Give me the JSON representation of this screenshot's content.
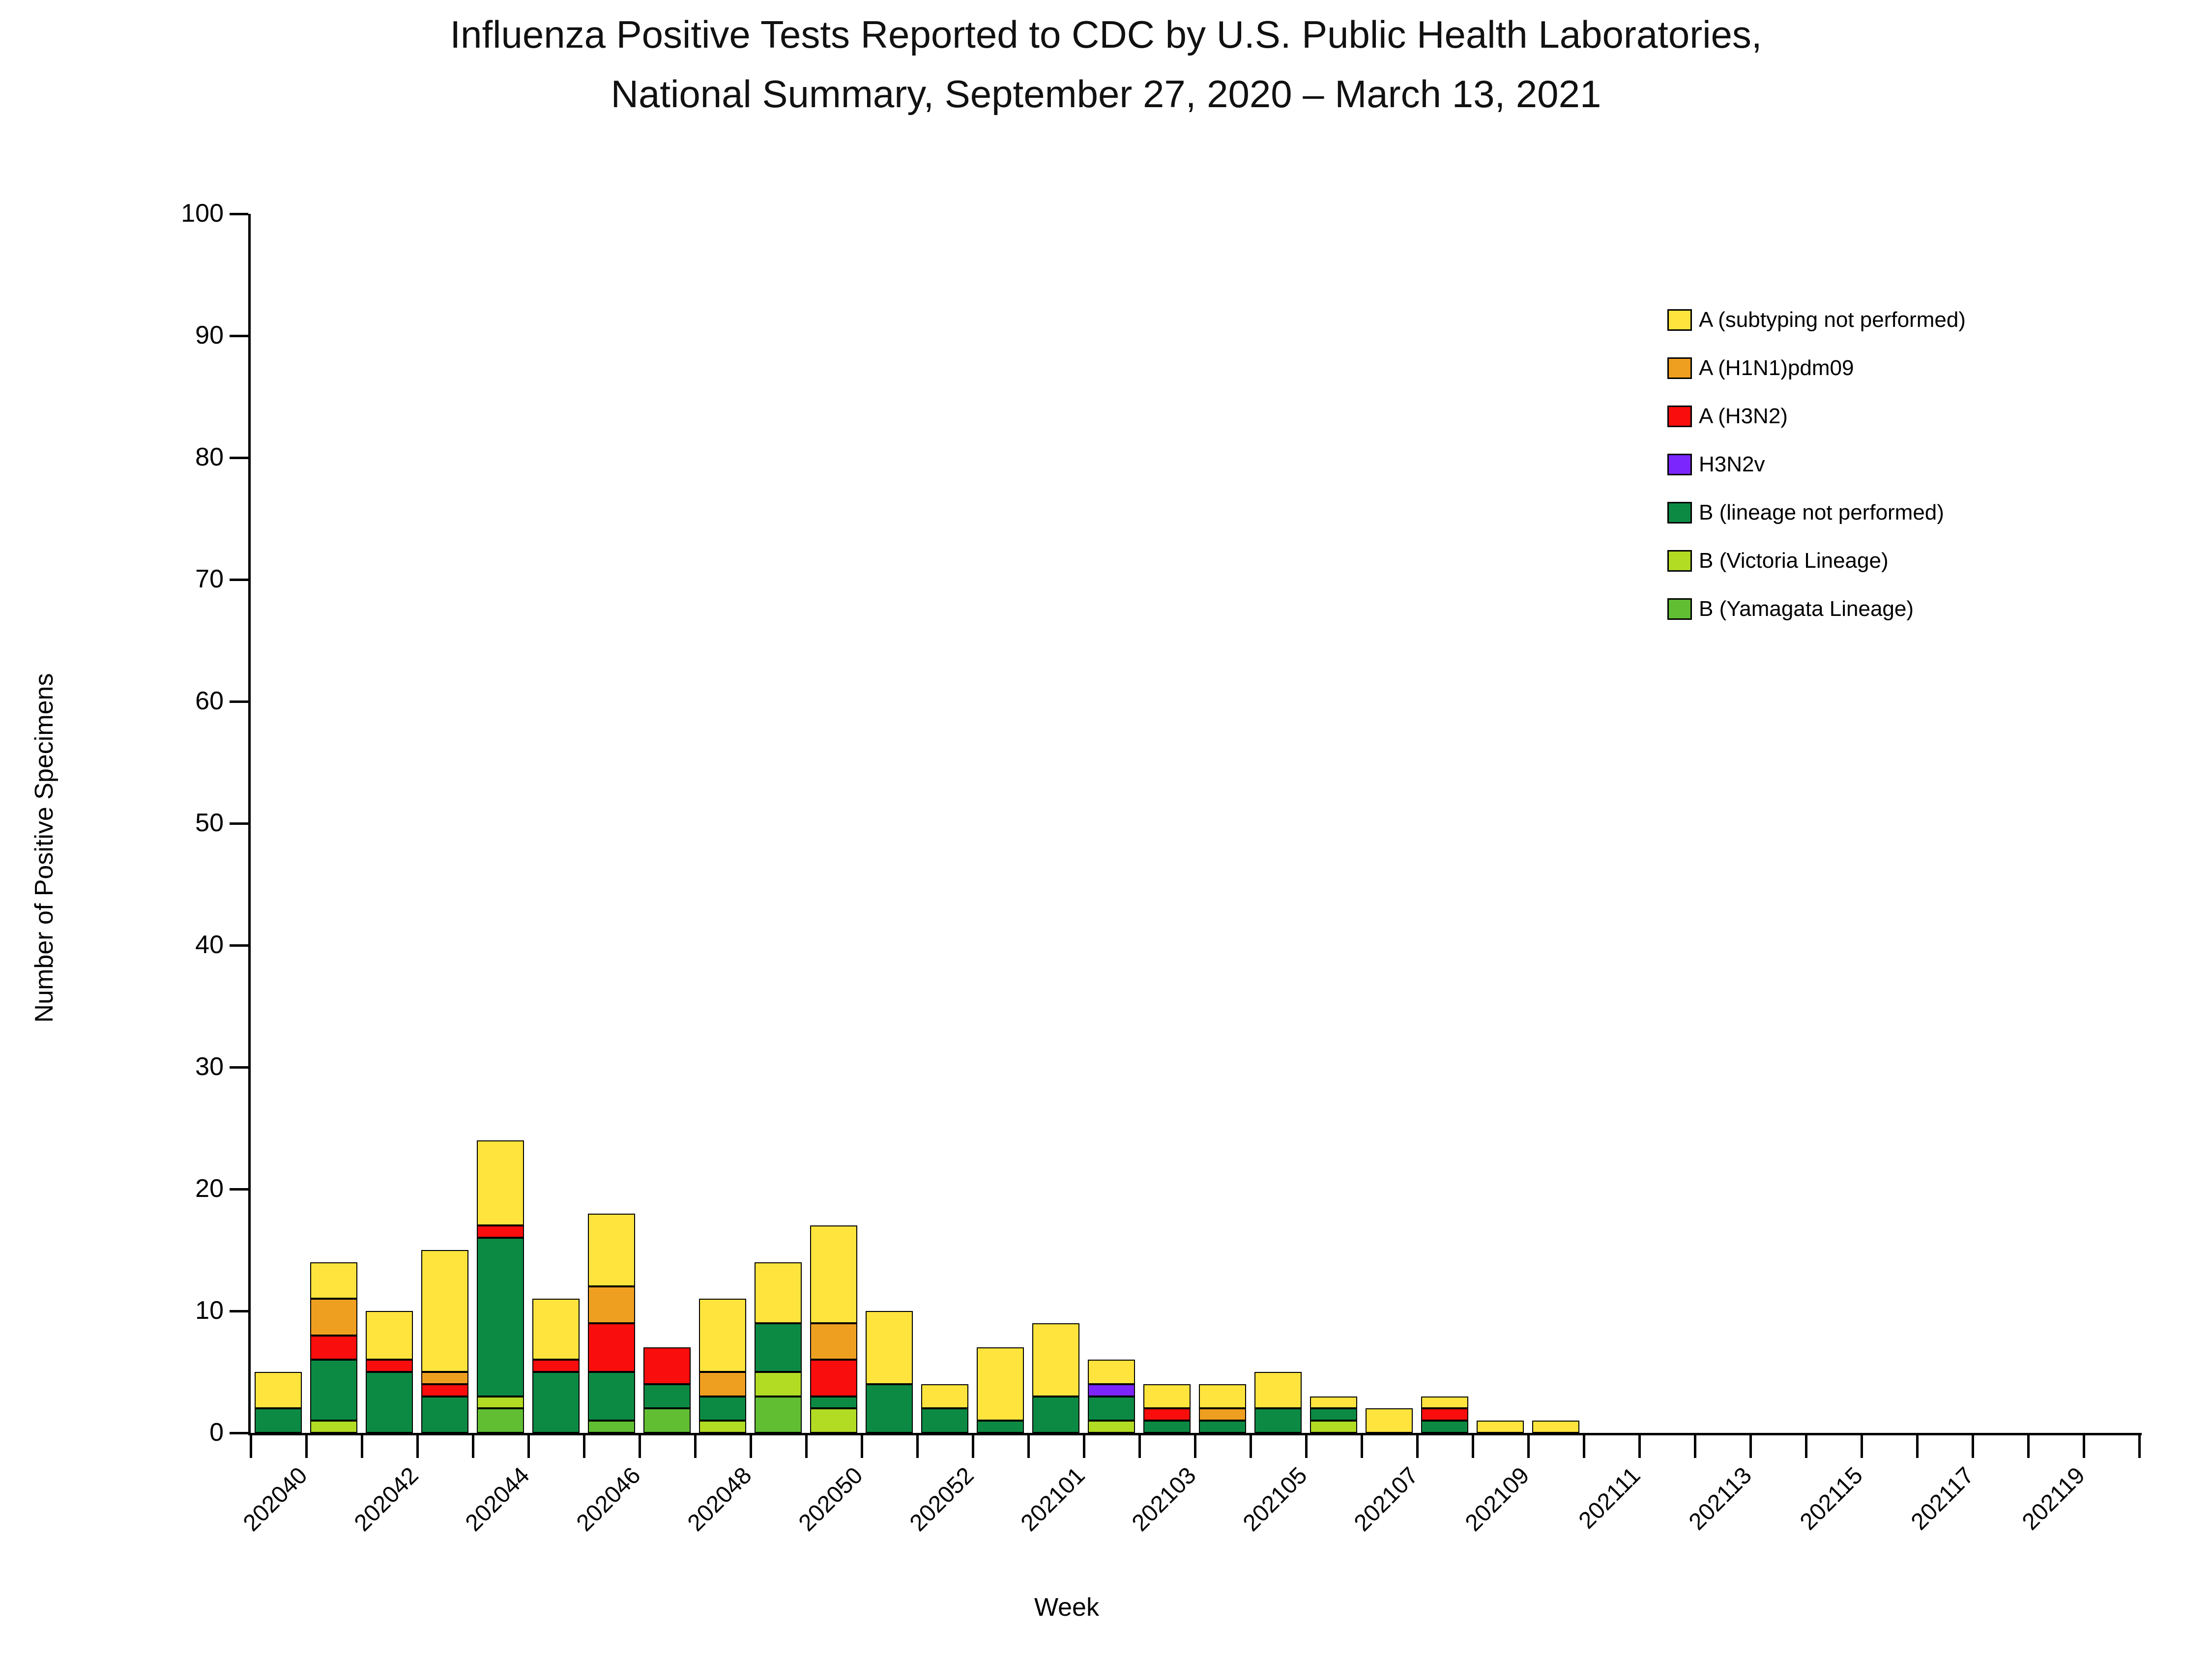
{
  "title": {
    "line1": "Influenza Positive Tests Reported to CDC by U.S. Public Health Laboratories,",
    "line2": "National Summary, September 27, 2020 – March 13, 2021"
  },
  "y_axis": {
    "label": "Number of Positive Specimens",
    "tick_labels": [
      "0",
      "10",
      "20",
      "30",
      "40",
      "50",
      "60",
      "70",
      "80",
      "90",
      "100"
    ]
  },
  "x_axis": {
    "label": "Week",
    "tick_labels": [
      "202040",
      "202042",
      "202044",
      "202046",
      "202048",
      "202050",
      "202052",
      "202101",
      "202103",
      "202105",
      "202107",
      "202109",
      "202111",
      "202113",
      "202115",
      "202117",
      "202119"
    ]
  },
  "legend": [
    {
      "label": "A (subtyping not performed)",
      "color": "#FFE43D"
    },
    {
      "label": "A (H1N1)pdm09",
      "color": "#EF9F20"
    },
    {
      "label": "A (H3N2)",
      "color": "#FA0D0D"
    },
    {
      "label": "H3N2v",
      "color": "#7C26FE"
    },
    {
      "label": "B (lineage not performed)",
      "color": "#0C8A44"
    },
    {
      "label": "B (Victoria Lineage)",
      "color": "#B2DB23"
    },
    {
      "label": "B (Yamagata Lineage)",
      "color": "#61BE33"
    }
  ],
  "chart_data": {
    "type": "bar",
    "stacked": true,
    "title": "Influenza Positive Tests Reported to CDC by U.S. Public Health Laboratories, National Summary, September 27, 2020 – March 13, 2021",
    "xlabel": "Week",
    "ylabel": "Number of Positive Specimens",
    "ylim": [
      0,
      100
    ],
    "yticks": [
      0,
      10,
      20,
      30,
      40,
      50,
      60,
      70,
      80,
      90,
      100
    ],
    "grid": false,
    "legend_position": "upper right inside",
    "categories": [
      "202040",
      "202041",
      "202042",
      "202043",
      "202044",
      "202045",
      "202046",
      "202047",
      "202048",
      "202049",
      "202050",
      "202051",
      "202052",
      "202053",
      "202101",
      "202102",
      "202103",
      "202104",
      "202105",
      "202106",
      "202107",
      "202108",
      "202109",
      "202110",
      "202111",
      "202112",
      "202113",
      "202114",
      "202115",
      "202116",
      "202117",
      "202118",
      "202119",
      "202120"
    ],
    "series": [
      {
        "name": "B (Yamagata Lineage)",
        "color": "#61BE33",
        "values": [
          0,
          0,
          0,
          0,
          2,
          0,
          1,
          2,
          0,
          3,
          0,
          0,
          0,
          0,
          0,
          0,
          0,
          0,
          0,
          0,
          0,
          0,
          0,
          0,
          0,
          0,
          0,
          0,
          0,
          0,
          0,
          0,
          0,
          0
        ]
      },
      {
        "name": "B (Victoria Lineage)",
        "color": "#B2DB23",
        "values": [
          0,
          1,
          0,
          0,
          1,
          0,
          0,
          0,
          1,
          2,
          2,
          0,
          0,
          0,
          0,
          1,
          0,
          0,
          0,
          1,
          0,
          0,
          0,
          0,
          0,
          0,
          0,
          0,
          0,
          0,
          0,
          0,
          0,
          0
        ]
      },
      {
        "name": "B (lineage not performed)",
        "color": "#0C8A44",
        "values": [
          2,
          5,
          5,
          3,
          13,
          5,
          4,
          2,
          2,
          4,
          1,
          4,
          2,
          1,
          3,
          2,
          1,
          1,
          2,
          1,
          0,
          1,
          0,
          0,
          0,
          0,
          0,
          0,
          0,
          0,
          0,
          0,
          0,
          0
        ]
      },
      {
        "name": "H3N2v",
        "color": "#7C26FE",
        "values": [
          0,
          0,
          0,
          0,
          0,
          0,
          0,
          0,
          0,
          0,
          0,
          0,
          0,
          0,
          0,
          1,
          0,
          0,
          0,
          0,
          0,
          0,
          0,
          0,
          0,
          0,
          0,
          0,
          0,
          0,
          0,
          0,
          0,
          0
        ]
      },
      {
        "name": "A (H3N2)",
        "color": "#FA0D0D",
        "values": [
          0,
          2,
          1,
          1,
          1,
          1,
          4,
          3,
          0,
          0,
          3,
          0,
          0,
          0,
          0,
          0,
          1,
          0,
          0,
          0,
          0,
          1,
          0,
          0,
          0,
          0,
          0,
          0,
          0,
          0,
          0,
          0,
          0,
          0
        ]
      },
      {
        "name": "A (H1N1)pdm09",
        "color": "#EF9F20",
        "values": [
          0,
          3,
          0,
          1,
          0,
          0,
          3,
          0,
          2,
          0,
          3,
          0,
          0,
          0,
          0,
          0,
          0,
          1,
          0,
          0,
          0,
          0,
          0,
          0,
          0,
          0,
          0,
          0,
          0,
          0,
          0,
          0,
          0,
          0
        ]
      },
      {
        "name": "A (subtyping not performed)",
        "color": "#FFE43D",
        "values": [
          3,
          3,
          4,
          10,
          7,
          5,
          6,
          0,
          6,
          5,
          8,
          6,
          2,
          6,
          6,
          2,
          2,
          2,
          3,
          1,
          2,
          1,
          1,
          1,
          0,
          0,
          0,
          0,
          0,
          0,
          0,
          0,
          0,
          0
        ]
      }
    ],
    "totals": [
      5,
      14,
      10,
      15,
      24,
      11,
      18,
      7,
      11,
      14,
      17,
      10,
      4,
      7,
      9,
      6,
      4,
      4,
      5,
      3,
      2,
      3,
      1,
      1,
      0,
      0,
      0,
      0,
      0,
      0,
      0,
      0,
      0,
      0
    ]
  }
}
